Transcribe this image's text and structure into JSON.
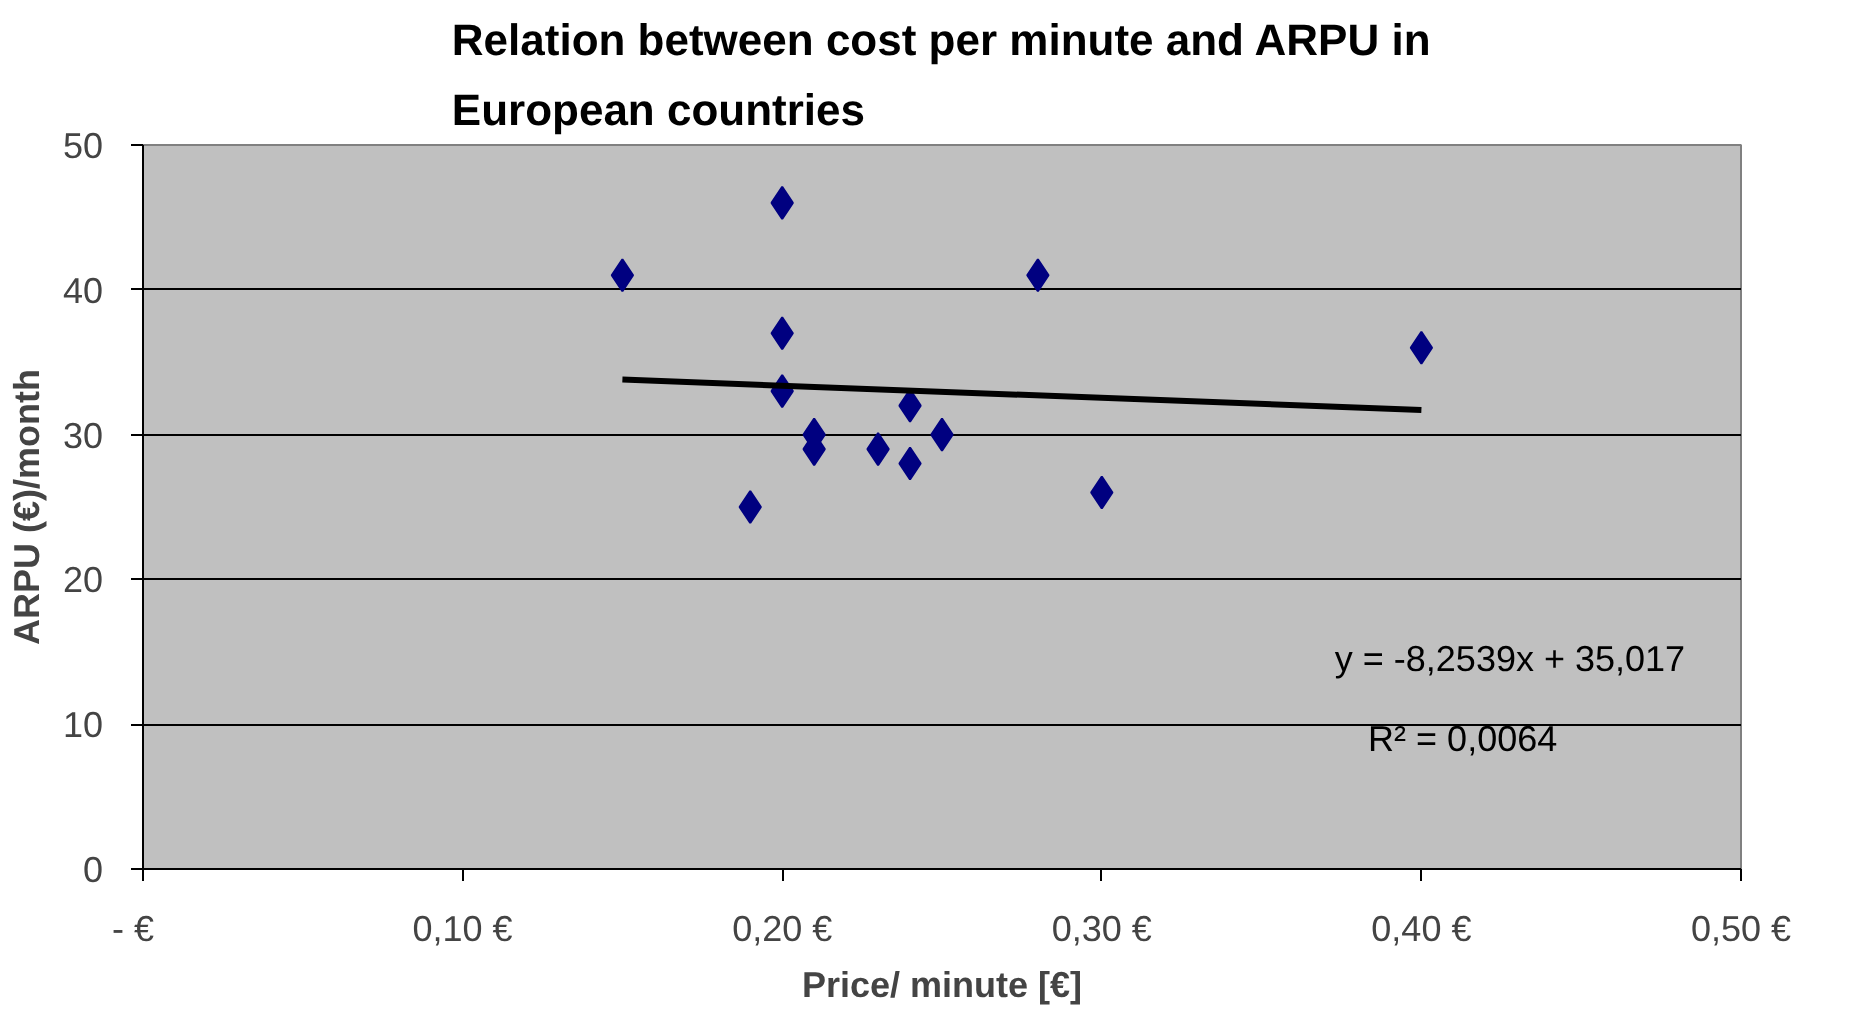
{
  "chart_data": {
    "type": "scatter",
    "title": "Relation between cost per minute and ARPU in European countries",
    "xlabel": "Price/ minute [€]",
    "ylabel": "ARPU (€)/month",
    "x": [
      0.15,
      0.2,
      0.2,
      0.2,
      0.21,
      0.21,
      0.19,
      0.23,
      0.24,
      0.24,
      0.25,
      0.28,
      0.3,
      0.4
    ],
    "series": [
      {
        "color": "#000080",
        "values": [
          41,
          46,
          37,
          33,
          30,
          29,
          25,
          29,
          32,
          28,
          30,
          41,
          26,
          36
        ],
        "marker": "diamond"
      },
      {
        "type": "line",
        "color": "#000000",
        "x": [
          0.15,
          0.4
        ],
        "values": [
          33.8,
          31.7
        ],
        "marker": "none"
      }
    ],
    "xlim": [
      0,
      0.5
    ],
    "ylim": [
      0,
      50
    ],
    "xticks": [
      {
        "value": 0,
        "label": "-   €"
      },
      {
        "value": 0.1,
        "label": "0,10 €"
      },
      {
        "value": 0.2,
        "label": "0,20 €"
      },
      {
        "value": 0.3,
        "label": "0,30 €"
      },
      {
        "value": 0.4,
        "label": "0,40 €"
      },
      {
        "value": 0.5,
        "label": "0,50 €"
      }
    ],
    "yticks": [
      0,
      10,
      20,
      30,
      40,
      50
    ],
    "grid": "y",
    "annotations": [
      "y = -8,2539x + 35,017",
      "R² = 0,0064"
    ]
  }
}
